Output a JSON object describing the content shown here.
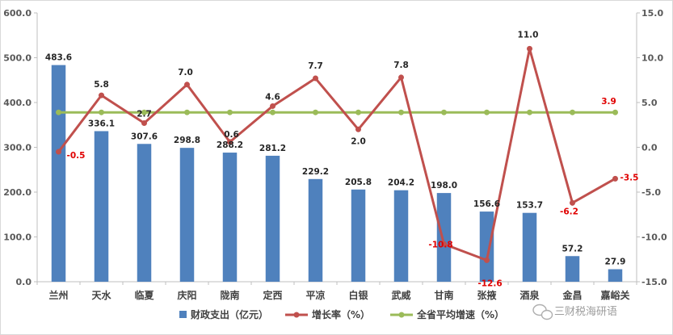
{
  "chart_data": {
    "type": "bar",
    "categories": [
      "兰州",
      "天水",
      "临夏",
      "庆阳",
      "陇南",
      "定西",
      "平凉",
      "白银",
      "武威",
      "甘南",
      "张掖",
      "酒泉",
      "金昌",
      "嘉峪关"
    ],
    "series": [
      {
        "name": "财政支出（亿元）",
        "type": "bar",
        "axis": "left",
        "color": "#4f81bd",
        "values": [
          483.6,
          336.1,
          307.6,
          298.8,
          288.2,
          281.2,
          229.2,
          205.8,
          204.2,
          198.0,
          156.6,
          153.7,
          57.2,
          27.9
        ],
        "labels": [
          "483.6",
          "336.1",
          "307.6",
          "298.8",
          "288.2",
          "281.2",
          "229.2",
          "205.8",
          "204.2",
          "198.0",
          "156.6",
          "153.7",
          "57.2",
          "27.9"
        ]
      },
      {
        "name": "增长率（%）",
        "type": "line",
        "axis": "right",
        "color": "#c0504d",
        "values": [
          -0.5,
          5.8,
          2.7,
          7.0,
          0.6,
          4.6,
          7.7,
          2.0,
          7.8,
          -10.8,
          -12.6,
          11.0,
          -6.2,
          -3.5
        ],
        "labels": [
          "-0.5",
          "5.8",
          "2.7",
          "7.0",
          "0.6",
          "4.6",
          "7.7",
          "2.0",
          "7.8",
          "-10.8",
          "-12.6",
          "11.0",
          "-6.2",
          "-3.5"
        ]
      },
      {
        "name": "全省平均增速（%）",
        "type": "line",
        "axis": "right",
        "color": "#9bbb59",
        "values": [
          3.9,
          3.9,
          3.9,
          3.9,
          3.9,
          3.9,
          3.9,
          3.9,
          3.9,
          3.9,
          3.9,
          3.9,
          3.9,
          3.9
        ],
        "end_label": "3.9"
      }
    ],
    "ylim_left": [
      0,
      600
    ],
    "ylim_right": [
      -15,
      15
    ],
    "yticks_left": [
      "0.0",
      "100.0",
      "200.0",
      "300.0",
      "400.0",
      "500.0",
      "600.0"
    ],
    "yticks_right": [
      "-15.0",
      "-10.0",
      "-5.0",
      "0.0",
      "5.0",
      "10.0",
      "15.0"
    ],
    "grid": false,
    "legend_position": "bottom",
    "watermark": "三财税海研语",
    "watermark_icon": "wechat-icon"
  }
}
